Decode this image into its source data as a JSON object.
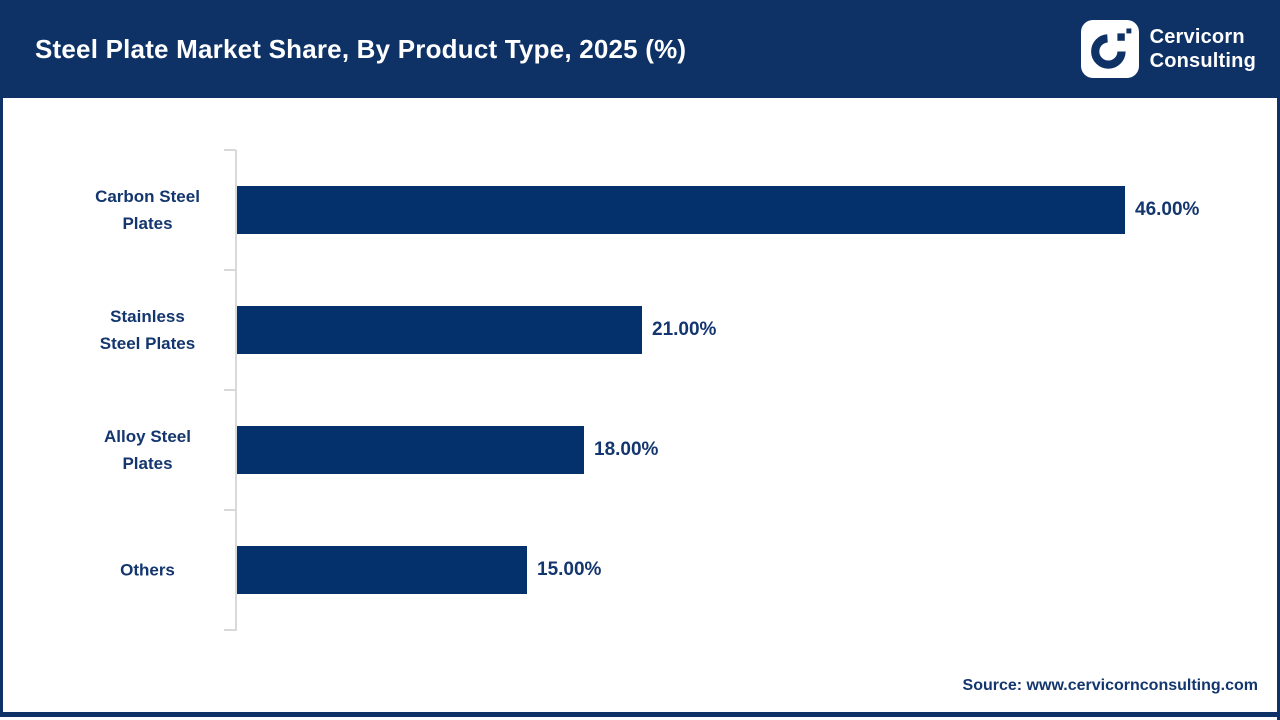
{
  "header": {
    "title": "Steel Plate Market Share, By Product Type, 2025 (%)",
    "logo": {
      "line1": "Cervicorn",
      "line2": "Consulting"
    }
  },
  "chart_data": {
    "type": "bar",
    "orientation": "horizontal",
    "title": "Steel Plate Market Share, By Product Type, 2025 (%)",
    "categories": [
      "Carbon Steel Plates",
      "Stainless Steel Plates",
      "Alloy Steel Plates",
      "Others"
    ],
    "category_display_lines": [
      [
        "Carbon Steel",
        "Plates"
      ],
      [
        "Stainless",
        "Steel Plates"
      ],
      [
        "Alloy Steel",
        "Plates"
      ],
      [
        "Others"
      ]
    ],
    "values": [
      46.0,
      21.0,
      18.0,
      15.0
    ],
    "value_labels": [
      "46.00%",
      "21.00%",
      "18.00%",
      "15.00%"
    ],
    "unit": "%",
    "xlim": [
      0,
      50
    ],
    "grid": false,
    "legend": false,
    "bar_color": "#04316C",
    "axis_color": "#D9D9D9",
    "label_color": "#14366E"
  },
  "footer": {
    "source": "Source: www.cervicornconsulting.com"
  },
  "colors": {
    "navy_header": "#0E3166",
    "bar_navy": "#04316C",
    "text_navy": "#14366E",
    "axis_gray": "#D9D9D9",
    "background": "#FFFFFF"
  }
}
